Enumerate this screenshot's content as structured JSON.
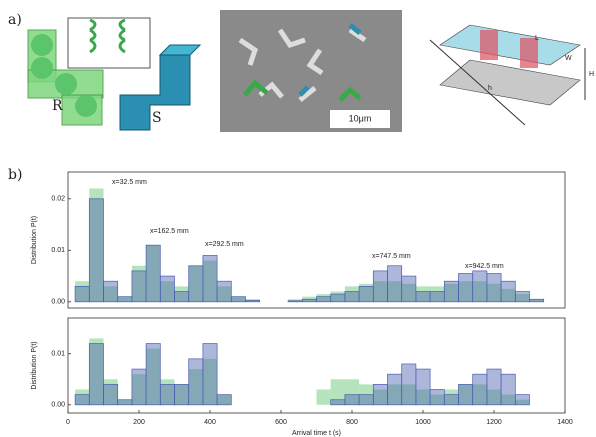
{
  "panel_a": {
    "label": "a)",
    "shape_labels": [
      "R",
      "S"
    ],
    "scale_bar": "10μm",
    "channel_labels": [
      "L",
      "W",
      "H",
      "h"
    ]
  },
  "panel_b_label": "b)",
  "chart_data": [
    {
      "type": "histogram",
      "ylabel": "Distribution P(t)",
      "annotations": [
        "x=32.5 mm",
        "x=162.5 mm",
        "x=292.5 mm",
        "x=747.5 mm",
        "x=942.5 mm"
      ],
      "x": [
        40,
        80,
        120,
        160,
        200,
        240,
        280,
        320,
        360,
        400,
        440,
        480,
        520,
        560,
        600,
        640,
        680,
        720,
        760,
        800,
        840,
        880,
        920,
        960,
        1000,
        1040,
        1080,
        1120,
        1160,
        1200,
        1240,
        1280,
        1320,
        1360
      ],
      "xlim": [
        0,
        1400
      ],
      "ylim": [
        -0.0012,
        0.0252
      ],
      "yticks": [
        {
          "value": 0,
          "label": "0.00"
        },
        {
          "value": 0.01,
          "label": "0.01"
        },
        {
          "value": 0.02,
          "label": "0.02"
        }
      ],
      "series": [
        {
          "color": "#5cc46a",
          "values": [
            0.004,
            0.022,
            0.003,
            0.001,
            0.007,
            0.011,
            0.004,
            0.003,
            0.007,
            0.008,
            0.003,
            0.001,
            0.0005,
            0,
            0,
            0.0005,
            0.001,
            0.0015,
            0.002,
            0.003,
            0.0035,
            0.004,
            0.004,
            0.0035,
            0.003,
            0.003,
            0.0035,
            0.004,
            0.004,
            0.0035,
            0.0025,
            0.0015,
            0.0005,
            0
          ]
        },
        {
          "color": "#4a5fb0",
          "values": [
            0.003,
            0.02,
            0.004,
            0.001,
            0.006,
            0.011,
            0.005,
            0.002,
            0.007,
            0.009,
            0.004,
            0.001,
            0.0003,
            0,
            0,
            0.0002,
            0.0005,
            0.001,
            0.0015,
            0.002,
            0.003,
            0.006,
            0.007,
            0.005,
            0.002,
            0.002,
            0.004,
            0.0055,
            0.006,
            0.0055,
            0.004,
            0.002,
            0.0005,
            0
          ]
        }
      ]
    },
    {
      "type": "histogram",
      "ylabel": "Distribution P(t)",
      "xlabel": "Arrival time t (s)",
      "x": [
        40,
        80,
        120,
        160,
        200,
        240,
        280,
        320,
        360,
        400,
        440,
        480,
        520,
        560,
        600,
        640,
        680,
        720,
        760,
        800,
        840,
        880,
        920,
        960,
        1000,
        1040,
        1080,
        1120,
        1160,
        1200,
        1240,
        1280,
        1320,
        1360
      ],
      "xlim": [
        0,
        1400
      ],
      "xticks": [
        0,
        200,
        400,
        600,
        800,
        1000,
        1200,
        1400
      ],
      "ylim": [
        -0.0016,
        0.017
      ],
      "yticks": [
        {
          "value": 0,
          "label": "0.00"
        },
        {
          "value": 0.01,
          "label": "0.01"
        }
      ],
      "series": [
        {
          "color": "#5cc46a",
          "values": [
            0.003,
            0.013,
            0.005,
            0.001,
            0.006,
            0.011,
            0.005,
            0.004,
            0.007,
            0.009,
            0.002,
            0,
            0,
            0,
            0,
            0,
            0,
            0.003,
            0.005,
            0.005,
            0.004,
            0.003,
            0.004,
            0.004,
            0.003,
            0.002,
            0.003,
            0.004,
            0.004,
            0.003,
            0.002,
            0.001,
            0,
            0
          ]
        },
        {
          "color": "#4a5fb0",
          "values": [
            0.002,
            0.012,
            0.004,
            0.001,
            0.007,
            0.012,
            0.004,
            0.004,
            0.009,
            0.012,
            0.002,
            0,
            0,
            0,
            0,
            0,
            0,
            0,
            0.001,
            0.002,
            0.002,
            0.004,
            0.006,
            0.008,
            0.007,
            0.003,
            0.002,
            0.004,
            0.006,
            0.007,
            0.006,
            0.002,
            0,
            0
          ]
        }
      ]
    }
  ]
}
